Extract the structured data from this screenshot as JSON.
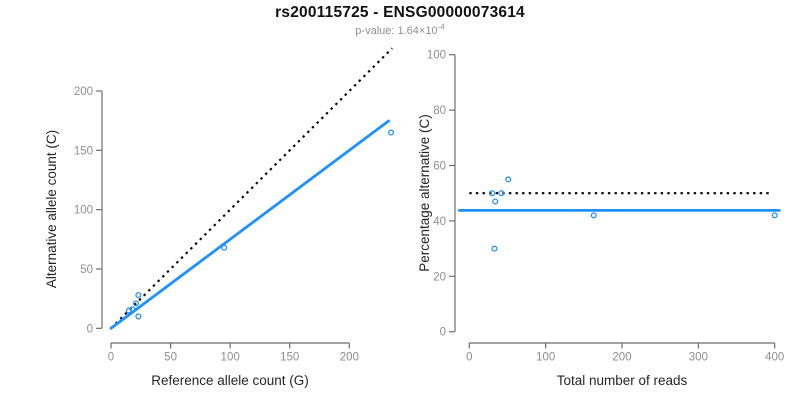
{
  "header": {
    "title": "rs200115725 - ENSG00000073614",
    "p_value_prefix": "p-value: 1.64×10",
    "p_value_exponent": "-4"
  },
  "colors": {
    "series_blue": "#1E90FF",
    "reference_line_black": "#000000",
    "axis_line_gray": "#6e6e6e",
    "tick_label_gray": "#8f8f8f",
    "axis_title_color": "#262626",
    "title_color": "#111111",
    "subtitle_gray": "#8f8f8f"
  },
  "chart_data": [
    {
      "type": "scatter",
      "title": "rs200115725 - ENSG00000073614",
      "subtitle": "p-value: 1.64×10^-4",
      "xlabel": "Reference allele count (G)",
      "ylabel": "Alternative allele count (C)",
      "x_ticks": [
        0,
        50,
        100,
        150,
        200
      ],
      "y_ticks": [
        0,
        50,
        100,
        150,
        200
      ],
      "xlim": [
        -9,
        240
      ],
      "ylim": [
        -9,
        237
      ],
      "grid": false,
      "points": [
        [
          15,
          15
        ],
        [
          18,
          16
        ],
        [
          21,
          21
        ],
        [
          23,
          28
        ],
        [
          23,
          10
        ],
        [
          95,
          68
        ],
        [
          235,
          165
        ]
      ],
      "lines": [
        {
          "name": "identity-line",
          "style": "dotted",
          "color_key": "reference_line_black",
          "slope": 1,
          "intercept": 0,
          "x_range": [
            0,
            236
          ]
        },
        {
          "name": "fit-line",
          "style": "solid",
          "color_key": "series_blue",
          "slope": 0.75,
          "intercept": 0,
          "x_range": [
            0,
            233
          ]
        }
      ]
    },
    {
      "type": "scatter",
      "xlabel": "Total number of reads",
      "ylabel": "Percentage alternative (C)",
      "x_ticks": [
        0,
        100,
        200,
        300,
        400
      ],
      "y_ticks": [
        0,
        20,
        40,
        60,
        80,
        100
      ],
      "xlim": [
        -16,
        413
      ],
      "ylim": [
        -4,
        104
      ],
      "grid": false,
      "points": [
        [
          30,
          50
        ],
        [
          34,
          47
        ],
        [
          42,
          50
        ],
        [
          51,
          55
        ],
        [
          33,
          30
        ],
        [
          163,
          42
        ],
        [
          400,
          42
        ]
      ],
      "lines": [
        {
          "name": "fifty-percent-line",
          "style": "dotted",
          "color_key": "reference_line_black",
          "slope": 0,
          "intercept": 50,
          "x_range": [
            0,
            393
          ]
        },
        {
          "name": "mean-percentage-line",
          "style": "solid",
          "color_key": "series_blue",
          "slope": 0,
          "intercept": 43.8,
          "x_range": [
            -13,
            406
          ]
        }
      ]
    }
  ]
}
